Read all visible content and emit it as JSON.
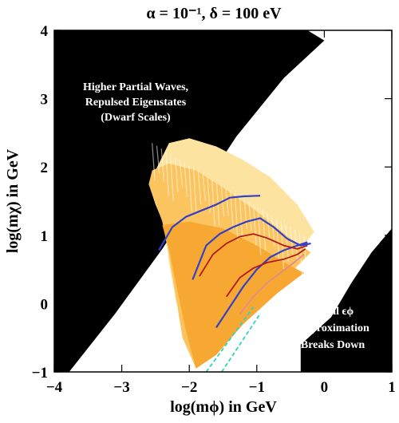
{
  "chart_data": {
    "type": "area",
    "title": "α = 10⁻¹,  δ = 100 eV",
    "xlabel": "log(mϕ) in GeV",
    "ylabel": "log(mχ) in GeV",
    "xlim": [
      -4,
      1
    ],
    "ylim": [
      -1,
      4
    ],
    "xticks": [
      "−4",
      "−3",
      "−2",
      "−1",
      "0",
      "1"
    ],
    "yticks": [
      "−1",
      "0",
      "1",
      "2",
      "3",
      "4"
    ],
    "grid": false,
    "colors": {
      "excluded": "#000000",
      "band_light": "#fde3a0",
      "band_mid": "#fbc45e",
      "band_dark": "#f7a832",
      "curve_blue": "#3340c8",
      "curve_red": "#b01a1a",
      "curve_pink": "#e28c8c",
      "dashed": "#33d1c4"
    },
    "regions": [
      {
        "name": "excluded-upper-left",
        "fill": "excluded",
        "points": [
          [
            -4,
            -1
          ],
          [
            -3.78,
            -1
          ],
          [
            -3.1,
            -0.15
          ],
          [
            -2.4,
            0.8
          ],
          [
            -1.8,
            1.7
          ],
          [
            -1.3,
            2.45
          ],
          [
            -0.6,
            3.3
          ],
          [
            0,
            3.85
          ],
          [
            -0.25,
            4
          ],
          [
            -4,
            4
          ]
        ]
      },
      {
        "name": "excluded-lower-right",
        "fill": "excluded",
        "points": [
          [
            -0.35,
            -1
          ],
          [
            -0.35,
            -0.6
          ],
          [
            0.1,
            -0.2
          ],
          [
            0.4,
            0.3
          ],
          [
            0.7,
            0.75
          ],
          [
            1,
            1.1
          ],
          [
            1,
            -1
          ]
        ]
      },
      {
        "name": "resonant-band-light",
        "fill": "band_light",
        "points": [
          [
            -2.6,
            1.75
          ],
          [
            -2.3,
            2.35
          ],
          [
            -2.0,
            2.42
          ],
          [
            -1.6,
            2.3
          ],
          [
            -1.2,
            2.1
          ],
          [
            -0.8,
            1.85
          ],
          [
            -0.4,
            1.45
          ],
          [
            -0.15,
            1.05
          ],
          [
            -0.35,
            0.8
          ],
          [
            -1.0,
            0.1
          ],
          [
            -1.5,
            -0.45
          ],
          [
            -1.9,
            -0.95
          ],
          [
            -2.05,
            -0.45
          ],
          [
            -2.2,
            0.05
          ],
          [
            -2.3,
            0.6
          ],
          [
            -2.35,
            1.1
          ],
          [
            -2.5,
            1.45
          ]
        ]
      },
      {
        "name": "resonant-band-mid",
        "fill": "band_mid",
        "points": [
          [
            -2.6,
            1.75
          ],
          [
            -2.55,
            1.95
          ],
          [
            -2.3,
            2.05
          ],
          [
            -1.9,
            1.95
          ],
          [
            -1.5,
            1.7
          ],
          [
            -1.0,
            1.35
          ],
          [
            -0.5,
            0.95
          ],
          [
            -0.2,
            0.75
          ],
          [
            -0.45,
            0.5
          ],
          [
            -1.0,
            -0.05
          ],
          [
            -1.5,
            -0.6
          ],
          [
            -1.9,
            -0.95
          ],
          [
            -2.1,
            -0.5
          ],
          [
            -2.2,
            0.1
          ],
          [
            -2.3,
            0.7
          ],
          [
            -2.4,
            1.2
          ]
        ]
      },
      {
        "name": "resonant-band-dark",
        "fill": "band_dark",
        "points": [
          [
            -2.4,
            1.15
          ],
          [
            -2.0,
            1.2
          ],
          [
            -1.5,
            1.1
          ],
          [
            -1.0,
            0.85
          ],
          [
            -0.5,
            0.55
          ],
          [
            -0.3,
            0.45
          ],
          [
            -0.7,
            0.15
          ],
          [
            -1.2,
            -0.3
          ],
          [
            -1.6,
            -0.75
          ],
          [
            -1.9,
            -0.95
          ],
          [
            -2.05,
            -0.4
          ],
          [
            -2.2,
            0.3
          ],
          [
            -2.3,
            0.8
          ]
        ]
      }
    ],
    "series": [
      {
        "color": "curve_blue",
        "width": 2.2,
        "points": [
          [
            -2.45,
            0.78
          ],
          [
            -2.25,
            1.12
          ],
          [
            -2.05,
            1.27
          ],
          [
            -1.85,
            1.35
          ],
          [
            -1.6,
            1.45
          ],
          [
            -1.4,
            1.55
          ],
          [
            -1.2,
            1.57
          ],
          [
            -0.95,
            1.58
          ]
        ]
      },
      {
        "color": "curve_blue",
        "width": 2.2,
        "points": [
          [
            -1.95,
            0.35
          ],
          [
            -1.75,
            0.85
          ],
          [
            -1.55,
            1.02
          ],
          [
            -1.35,
            1.12
          ],
          [
            -1.15,
            1.2
          ],
          [
            -0.95,
            1.25
          ],
          [
            -0.75,
            1.12
          ],
          [
            -0.55,
            0.95
          ],
          [
            -0.35,
            0.85
          ],
          [
            -0.2,
            0.88
          ]
        ]
      },
      {
        "color": "curve_blue",
        "width": 2.2,
        "points": [
          [
            -1.6,
            -0.35
          ],
          [
            -1.4,
            -0.05
          ],
          [
            -1.2,
            0.25
          ],
          [
            -1.0,
            0.5
          ],
          [
            -0.8,
            0.68
          ],
          [
            -0.6,
            0.78
          ],
          [
            -0.4,
            0.85
          ],
          [
            -0.25,
            0.9
          ]
        ]
      },
      {
        "color": "curve_red",
        "width": 1.8,
        "points": [
          [
            -1.85,
            0.4
          ],
          [
            -1.65,
            0.72
          ],
          [
            -1.45,
            0.88
          ],
          [
            -1.25,
            0.98
          ],
          [
            -1.05,
            1.02
          ],
          [
            -0.85,
            0.96
          ],
          [
            -0.6,
            0.85
          ],
          [
            -0.4,
            0.8
          ],
          [
            -0.25,
            0.85
          ]
        ]
      },
      {
        "color": "curve_red",
        "width": 1.8,
        "points": [
          [
            -1.45,
            0.1
          ],
          [
            -1.25,
            0.38
          ],
          [
            -1.05,
            0.52
          ],
          [
            -0.85,
            0.6
          ],
          [
            -0.6,
            0.65
          ],
          [
            -0.4,
            0.72
          ],
          [
            -0.28,
            0.8
          ]
        ]
      },
      {
        "color": "curve_pink",
        "width": 1.8,
        "points": [
          [
            -1.25,
            -0.15
          ],
          [
            -1.05,
            0.1
          ],
          [
            -0.85,
            0.3
          ],
          [
            -0.65,
            0.45
          ],
          [
            -0.45,
            0.6
          ],
          [
            -0.3,
            0.72
          ]
        ]
      }
    ],
    "dashed_lines": [
      {
        "color": "dashed",
        "points": [
          [
            -1.75,
            -1
          ],
          [
            -1.05,
            -0.05
          ]
        ]
      },
      {
        "color": "dashed",
        "points": [
          [
            -1.52,
            -1
          ],
          [
            -0.95,
            -0.15
          ]
        ]
      }
    ],
    "annotations": [
      {
        "name": "annotation-higher-partial-waves",
        "color": "#ffffff",
        "lines": [
          "Higher Partial Waves,",
          "Repulsed Eigenstates",
          "(Dwarf Scales)"
        ]
      },
      {
        "name": "annotation-small-epsilon",
        "color": "#ffffff",
        "lines": [
          "Small ϵϕ",
          "Approximation",
          "Breaks Down"
        ]
      }
    ]
  }
}
